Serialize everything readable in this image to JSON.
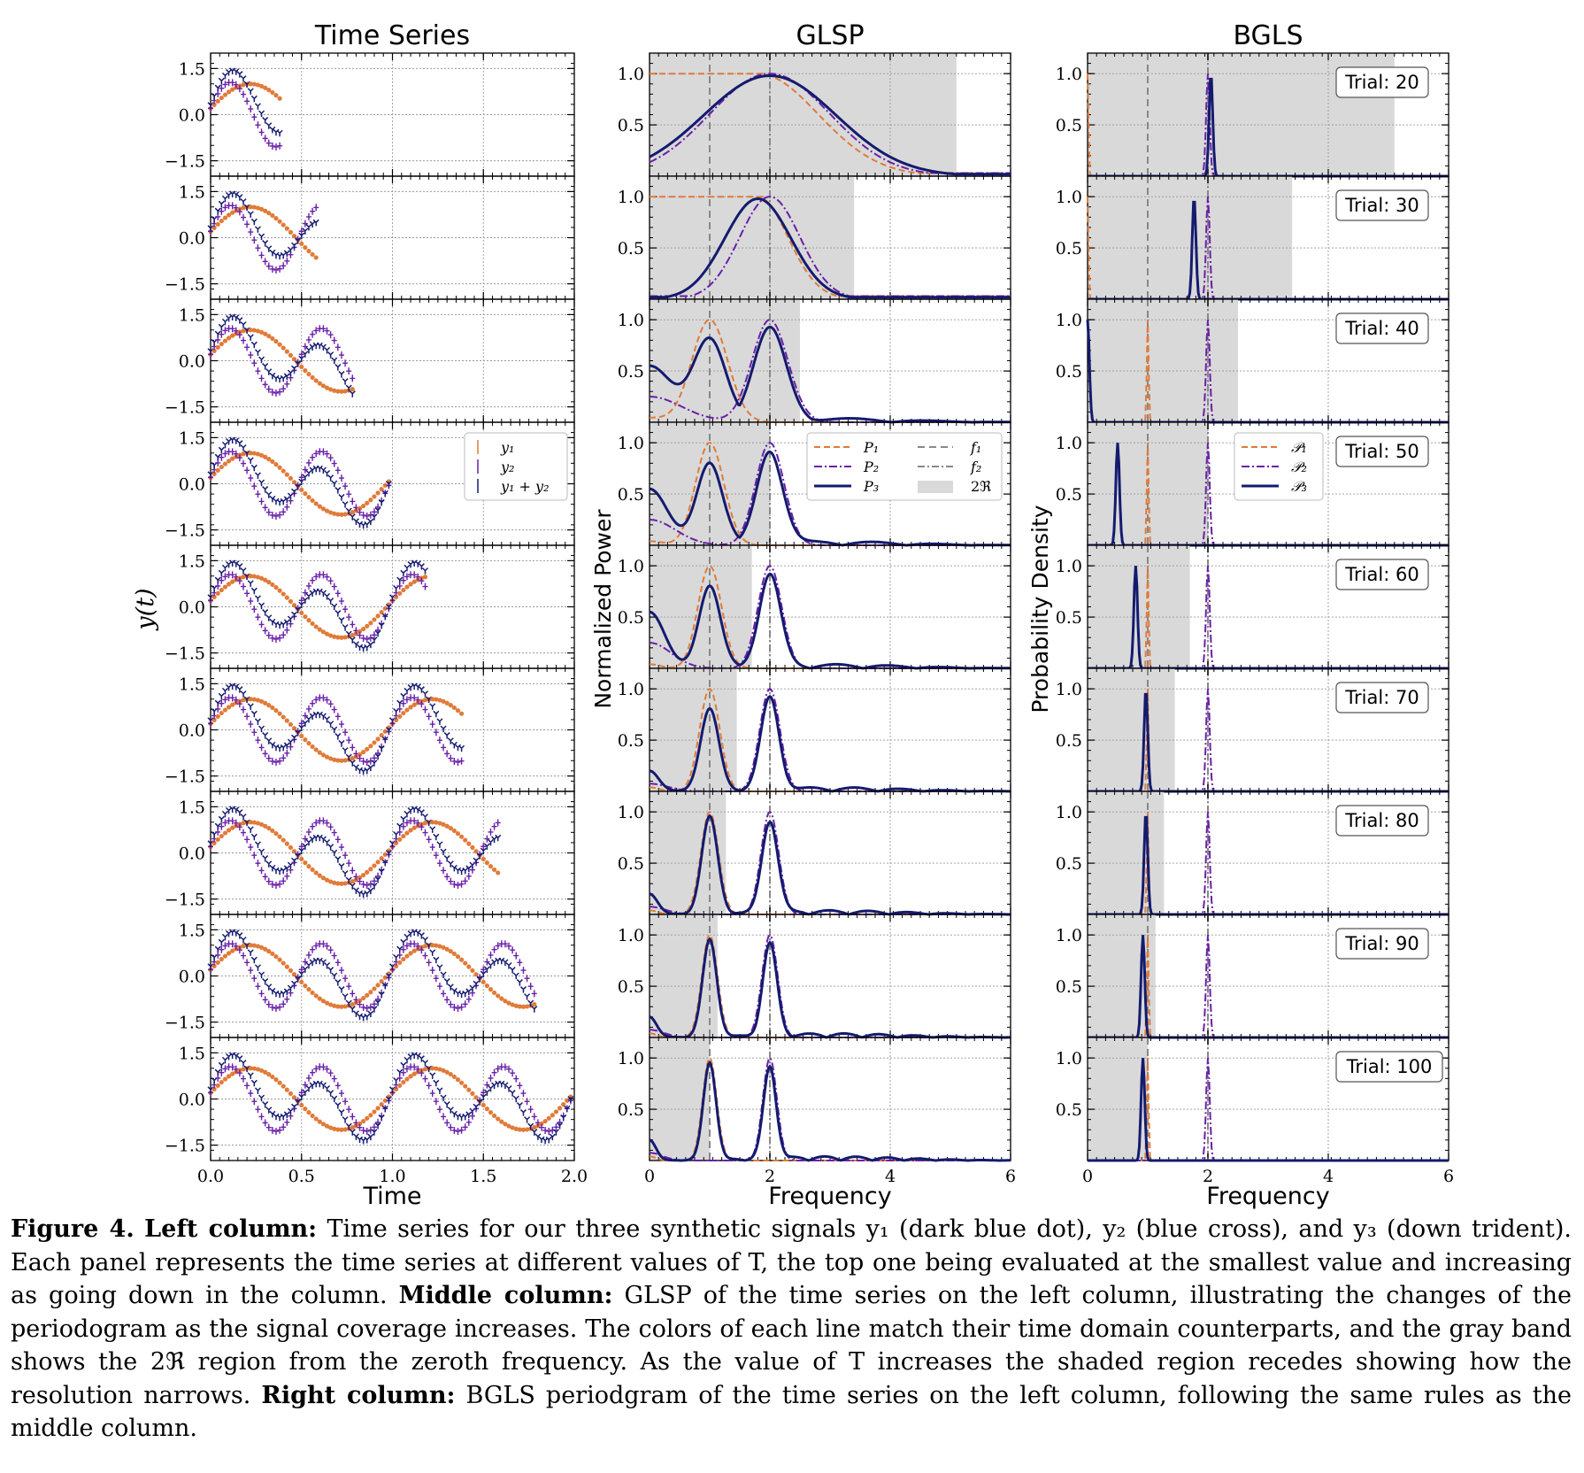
{
  "figure": {
    "columns": [
      {
        "title": "Time Series",
        "xlabel": "Time",
        "ylabel": "y(t)",
        "xticks": [
          "0.0",
          "0.5",
          "1.0",
          "1.5",
          "2.0"
        ],
        "yticks": [
          "1.5",
          "0.0",
          "−1.5"
        ]
      },
      {
        "title": "GLSP",
        "xlabel": "Frequency",
        "ylabel": "Normalized Power",
        "xticks": [
          "0",
          "2",
          "4",
          "6"
        ],
        "yticks": [
          "1.0",
          "0.5"
        ]
      },
      {
        "title": "BGLS",
        "xlabel": "Frequency",
        "ylabel": "Probability Density",
        "xticks": [
          "0",
          "2",
          "4",
          "6"
        ],
        "yticks": [
          "1.0",
          "0.5"
        ]
      }
    ],
    "trial_labels": [
      "Trial: 20",
      "Trial: 30",
      "Trial: 40",
      "Trial: 50",
      "Trial: 60",
      "Trial: 70",
      "Trial: 80",
      "Trial: 90",
      "Trial: 100"
    ],
    "legend_ts": [
      "y₁",
      "y₂",
      "y₁ + y₂"
    ],
    "legend_glsp": [
      "P₁",
      "P₂",
      "P₃",
      "f₁",
      "f₂",
      "2ℜ"
    ],
    "legend_bgls": [
      "𝒫₁",
      "𝒫₂",
      "𝒫₃"
    ]
  },
  "colors": {
    "y1": "#e07b39",
    "y2": "#6a1fa8",
    "y3": "#141b6e",
    "band": "#d9d9d9",
    "guide": "#888888"
  },
  "chart_data": [
    {
      "type": "scatter",
      "title": "Time Series",
      "xlabel": "Time",
      "ylabel": "y(t)",
      "xlim": [
        0,
        2
      ],
      "ylim": [
        -2,
        2
      ],
      "panels": 9,
      "T_per_panel": [
        0.38,
        0.58,
        0.78,
        0.98,
        1.18,
        1.38,
        1.58,
        1.78,
        1.98
      ],
      "series": [
        {
          "name": "y₁",
          "frequency": 1,
          "amplitude": 1.0,
          "phase": 0.2,
          "marker": "dot"
        },
        {
          "name": "y₂",
          "frequency": 2,
          "amplitude": 1.0,
          "phase": 0.2,
          "marker": "cross"
        },
        {
          "name": "y₁ + y₂",
          "frequency_pair": [
            1,
            2
          ],
          "marker": "trident"
        }
      ]
    },
    {
      "type": "line",
      "title": "GLSP",
      "xlabel": "Frequency",
      "ylabel": "Normalized Power",
      "xlim": [
        0,
        6
      ],
      "ylim": [
        0,
        1.2
      ],
      "guide_lines": [
        1,
        2
      ],
      "band_2R_end_per_panel": [
        5.1,
        3.4,
        2.5,
        2.0,
        1.7,
        1.45,
        1.27,
        1.13,
        1.0
      ],
      "series": [
        {
          "name": "P₁",
          "peak_frequency": 1
        },
        {
          "name": "P₂",
          "peak_frequency": 2
        },
        {
          "name": "P₃",
          "peak_frequencies": [
            1,
            2
          ]
        }
      ]
    },
    {
      "type": "line",
      "title": "BGLS",
      "xlabel": "Frequency",
      "ylabel": "Probability Density",
      "xlim": [
        0,
        6
      ],
      "ylim": [
        0,
        1.2
      ],
      "guide_lines": [
        1,
        2
      ],
      "band_2R_end_per_panel": [
        5.1,
        3.4,
        2.5,
        2.0,
        1.7,
        1.45,
        1.27,
        1.13,
        1.0
      ],
      "P3_peak_per_panel": [
        2.05,
        1.77,
        0.0,
        0.5,
        0.8,
        0.97,
        0.97,
        0.92,
        0.92
      ],
      "series": [
        {
          "name": "𝒫₁",
          "peak_frequency": 1
        },
        {
          "name": "𝒫₂",
          "peak_frequency": 2
        },
        {
          "name": "𝒫₃"
        }
      ]
    }
  ],
  "caption": {
    "label": "Figure 4.",
    "left_head": "Left column:",
    "left_body": " Time series for our three synthetic signals y₁ (dark blue dot), y₂ (blue cross), and y₃ (down trident). Each panel represents the time series at different values of T, the top one being evaluated at the smallest value and increasing as going down in the column. ",
    "middle_head": "Middle column:",
    "middle_body": " GLSP of the time series on the left column, illustrating the changes of the periodogram as the signal coverage increases. The colors of each line match their time domain counterparts, and the gray band shows the 2ℜ region from the zeroth frequency. As the value of T increases the shaded region recedes showing how the resolution narrows. ",
    "right_head": "Right column:",
    "right_body": " BGLS periodgram of the time series on the left column, following the same rules as the middle column."
  }
}
